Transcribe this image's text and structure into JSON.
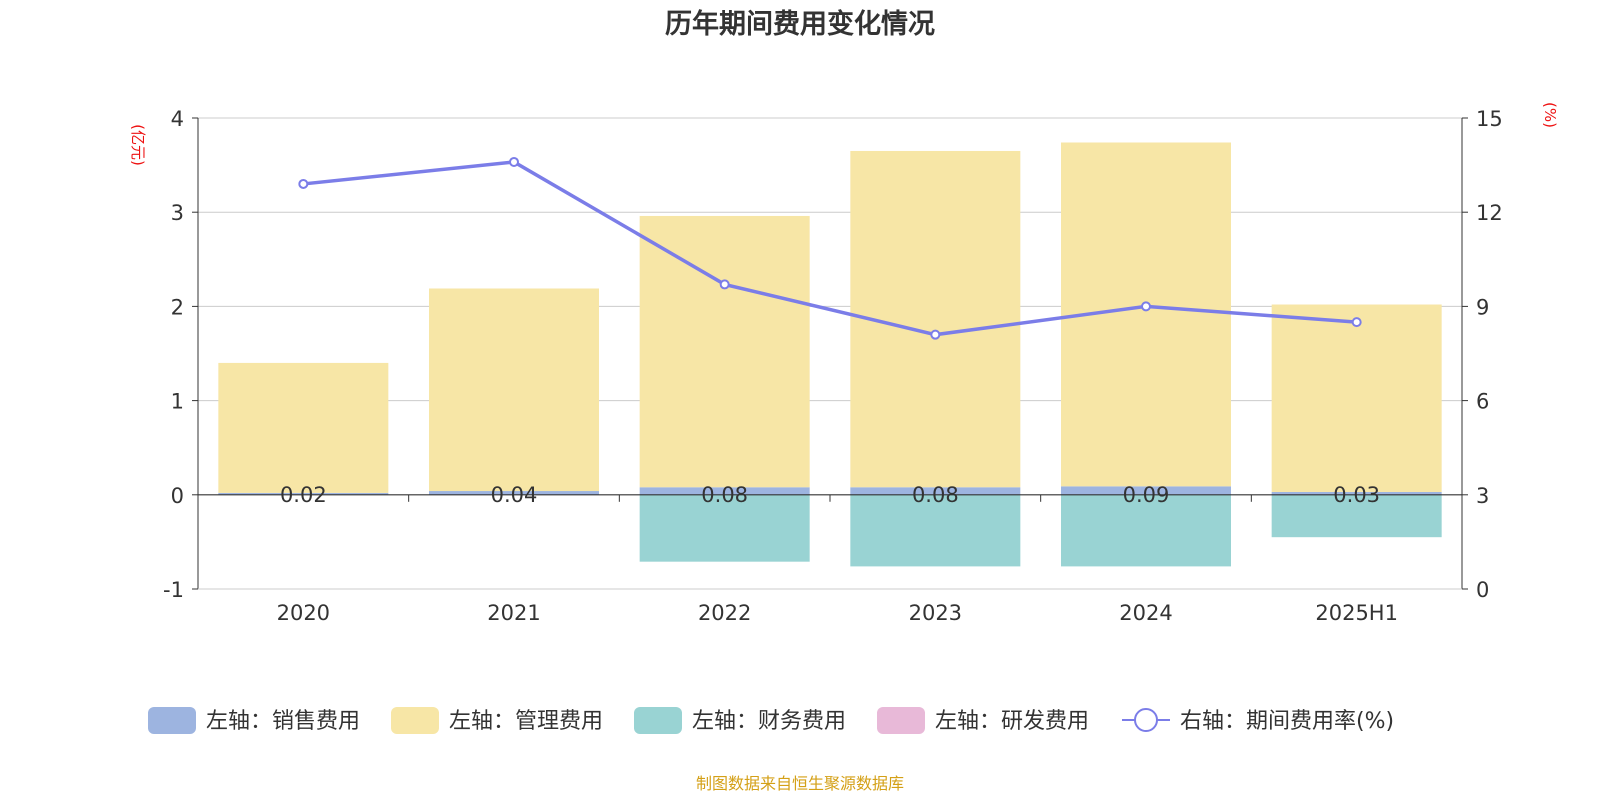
{
  "chart_data": {
    "type": "bar",
    "title": "历年期间费用变化情况",
    "categories": [
      "2020",
      "2021",
      "2022",
      "2023",
      "2024",
      "2025H1"
    ],
    "left_axis": {
      "unit_label": "(亿元)",
      "ylim": [
        -1,
        4
      ],
      "ticks": [
        "4",
        "3",
        "2",
        "1",
        "0",
        "-1"
      ]
    },
    "right_axis": {
      "unit_label": "(%)",
      "ylim": [
        0,
        15
      ],
      "ticks": [
        "15",
        "12",
        "9",
        "6",
        "3",
        "0"
      ]
    },
    "series": [
      {
        "name": "左轴：销售费用",
        "kind": "bar",
        "axis": "left",
        "color": "#9db4e0",
        "values": [
          0.02,
          0.04,
          0.08,
          0.08,
          0.09,
          0.03
        ],
        "labels": [
          "0.02",
          "0.04",
          "0.08",
          "0.08",
          "0.09",
          "0.03"
        ]
      },
      {
        "name": "左轴：管理费用",
        "kind": "bar",
        "axis": "left",
        "color": "#f7e6a6",
        "values": [
          1.38,
          2.15,
          2.88,
          3.57,
          3.65,
          1.99
        ]
      },
      {
        "name": "左轴：财务费用",
        "kind": "bar",
        "axis": "left",
        "color": "#99d3d3",
        "values": [
          0,
          0,
          -0.71,
          -0.76,
          -0.76,
          -0.45
        ]
      },
      {
        "name": "左轴：研发费用",
        "kind": "bar",
        "axis": "left",
        "color": "#e8b9d8",
        "values": [
          0,
          0,
          0,
          0,
          0,
          0
        ]
      },
      {
        "name": "右轴：期间费用率(%)",
        "kind": "line",
        "axis": "right",
        "color": "#7b7de8",
        "values": [
          12.9,
          13.6,
          9.7,
          8.1,
          9.0,
          8.5
        ]
      }
    ],
    "grid": true,
    "legend_position": "bottom"
  },
  "footer": {
    "source_text": "制图数据来自恒生聚源数据库"
  }
}
